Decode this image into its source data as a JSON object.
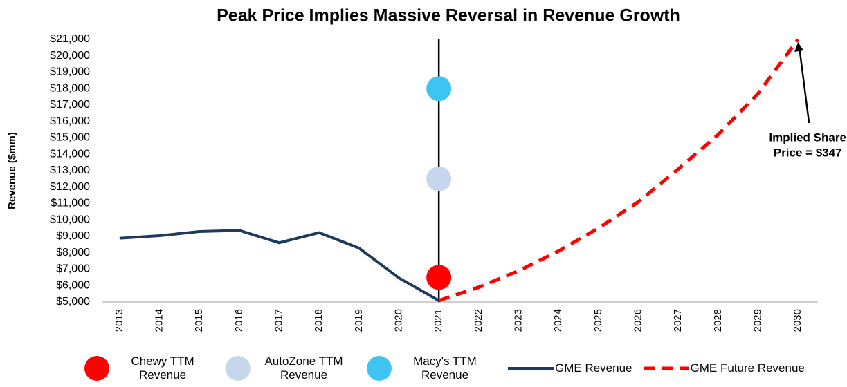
{
  "chart_data": {
    "type": "line",
    "title": "Peak Price Implies Massive Reversal in Revenue Growth",
    "y_label": "Revenue ($mm)",
    "categories": [
      "2013",
      "2014",
      "2015",
      "2016",
      "2017",
      "2018",
      "2019",
      "2020",
      "2021",
      "2022",
      "2023",
      "2024",
      "2025",
      "2026",
      "2027",
      "2028",
      "2029",
      "2030"
    ],
    "series": [
      {
        "name": "Chewy TTM Revenue",
        "kind": "scatter",
        "color": "#ff0000",
        "values": [
          null,
          null,
          null,
          null,
          null,
          null,
          null,
          null,
          6500,
          null,
          null,
          null,
          null,
          null,
          null,
          null,
          null,
          null
        ]
      },
      {
        "name": "AutoZone TTM Revenue",
        "kind": "scatter",
        "color": "#c6d6ec",
        "values": [
          null,
          null,
          null,
          null,
          null,
          null,
          null,
          null,
          12500,
          null,
          null,
          null,
          null,
          null,
          null,
          null,
          null,
          null
        ]
      },
      {
        "name": "Macy's TTM Revenue",
        "kind": "scatter",
        "color": "#3ec4f2",
        "values": [
          null,
          null,
          null,
          null,
          null,
          null,
          null,
          null,
          18000,
          null,
          null,
          null,
          null,
          null,
          null,
          null,
          null,
          null
        ]
      },
      {
        "name": "GME Revenue",
        "kind": "line",
        "color": "#1e3a5c",
        "dashed": false,
        "values": [
          8887,
          9040,
          9296,
          9364,
          8608,
          9225,
          8285,
          6466,
          5090,
          null,
          null,
          null,
          null,
          null,
          null,
          null,
          null,
          null
        ]
      },
      {
        "name": "GME Future Revenue",
        "kind": "line",
        "color": "#ff0000",
        "dashed": true,
        "values": [
          null,
          null,
          null,
          null,
          null,
          null,
          null,
          null,
          5090,
          5900,
          6900,
          8100,
          9500,
          11100,
          13100,
          15200,
          17700,
          21000
        ]
      }
    ],
    "ylim": [
      5000,
      21000
    ],
    "yticks": [
      {
        "value": 5000,
        "label": "$5,000"
      },
      {
        "value": 6000,
        "label": "$6,000"
      },
      {
        "value": 7000,
        "label": "$7,000"
      },
      {
        "value": 8000,
        "label": "$8,000"
      },
      {
        "value": 9000,
        "label": "$9,000"
      },
      {
        "value": 10000,
        "label": "$10,000"
      },
      {
        "value": 11000,
        "label": "$11,000"
      },
      {
        "value": 12000,
        "label": "$12,000"
      },
      {
        "value": 13000,
        "label": "$13,000"
      },
      {
        "value": 14000,
        "label": "$14,000"
      },
      {
        "value": 15000,
        "label": "$15,000"
      },
      {
        "value": 16000,
        "label": "$16,000"
      },
      {
        "value": 17000,
        "label": "$17,000"
      },
      {
        "value": 18000,
        "label": "$18,000"
      },
      {
        "value": 19000,
        "label": "$19,000"
      },
      {
        "value": 20000,
        "label": "$20,000"
      },
      {
        "value": 21000,
        "label": "$21,000"
      }
    ],
    "annotation": [
      "Implied Share",
      "Price = $347"
    ],
    "grid": false
  }
}
